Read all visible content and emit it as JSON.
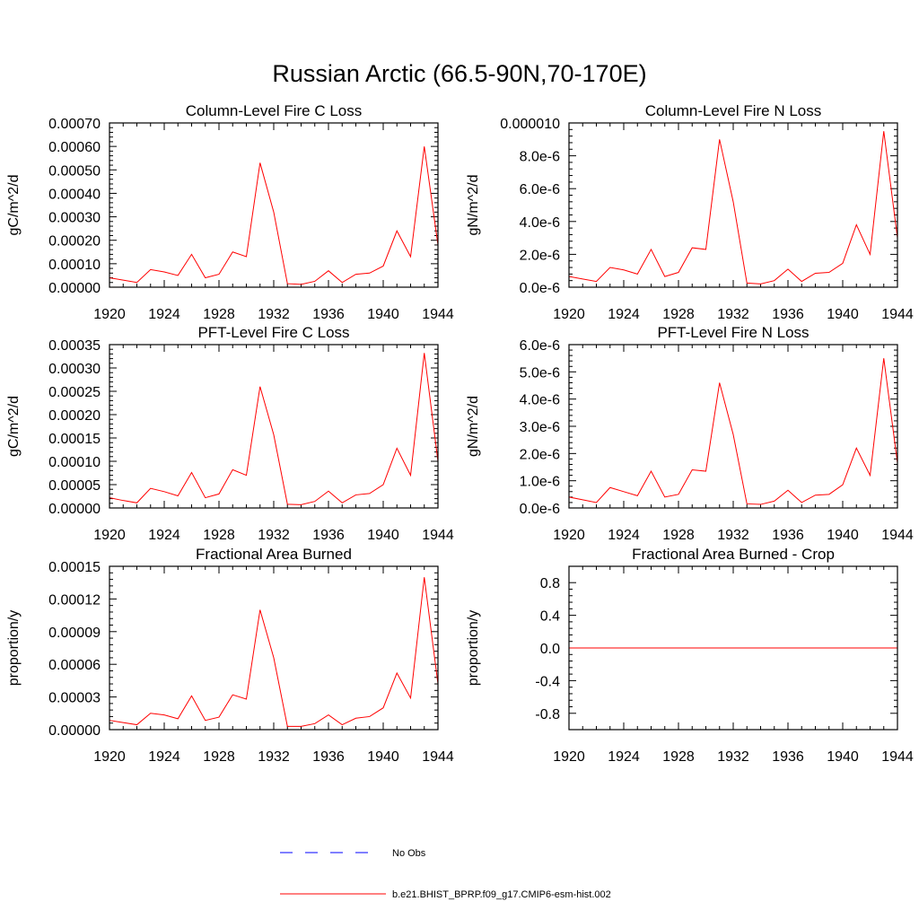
{
  "title": "Russian Arctic (66.5-90N,70-170E)",
  "colors": {
    "model_line": "#ff0000",
    "obs_line": "#0000ff",
    "axes": "#000000"
  },
  "legend": {
    "obs_label": "No Obs",
    "model_label": "b.e21.BHIST_BPRP.f09_g17.CMIP6-esm-hist.002"
  },
  "chart_data": [
    {
      "type": "line",
      "title": "Column-Level Fire C Loss",
      "ylabel": "gC/m^2/d",
      "xlim": [
        1920,
        1944
      ],
      "ylim": [
        0,
        0.0007
      ],
      "xticks": [
        1920,
        1924,
        1928,
        1932,
        1936,
        1940,
        1944
      ],
      "yticks": [
        0,
        0.0001,
        0.0002,
        0.0003,
        0.0004,
        0.0005,
        0.0006,
        0.0007
      ],
      "ytick_labels": [
        "0.00000",
        "0.00010",
        "0.00020",
        "0.00030",
        "0.00040",
        "0.00050",
        "0.00060",
        "0.00070"
      ],
      "x": [
        1920,
        1921,
        1922,
        1923,
        1924,
        1925,
        1926,
        1927,
        1928,
        1929,
        1930,
        1931,
        1932,
        1933,
        1934,
        1935,
        1936,
        1937,
        1938,
        1939,
        1940,
        1941,
        1942,
        1943,
        1944
      ],
      "series": [
        {
          "name": "b.e21.BHIST_BPRP.f09_g17.CMIP6-esm-hist.002",
          "values": [
            4e-05,
            3e-05,
            2e-05,
            7.5e-05,
            6.5e-05,
            5e-05,
            0.00014,
            4e-05,
            5.5e-05,
            0.00015,
            0.00013,
            0.00053,
            0.00032,
            1.5e-05,
            1.2e-05,
            2.5e-05,
            7e-05,
            2e-05,
            5.5e-05,
            6e-05,
            9e-05,
            0.00024,
            0.00013,
            0.0006,
            0.00018
          ]
        }
      ]
    },
    {
      "type": "line",
      "title": "Column-Level Fire N Loss",
      "ylabel": "gN/m^2/d",
      "xlim": [
        1920,
        1944
      ],
      "ylim": [
        0,
        1e-05
      ],
      "xticks": [
        1920,
        1924,
        1928,
        1932,
        1936,
        1940,
        1944
      ],
      "yticks": [
        0,
        2e-06,
        4e-06,
        6e-06,
        8e-06,
        1e-05
      ],
      "ytick_labels": [
        "0.0e-6",
        "2.0e-6",
        "4.0e-6",
        "6.0e-6",
        "8.0e-6",
        "0.000010"
      ],
      "x": [
        1920,
        1921,
        1922,
        1923,
        1924,
        1925,
        1926,
        1927,
        1928,
        1929,
        1930,
        1931,
        1932,
        1933,
        1934,
        1935,
        1936,
        1937,
        1938,
        1939,
        1940,
        1941,
        1942,
        1943,
        1944
      ],
      "series": [
        {
          "name": "b.e21.BHIST_BPRP.f09_g17.CMIP6-esm-hist.002",
          "values": [
            6.5e-07,
            5e-07,
            3.5e-07,
            1.2e-06,
            1.05e-06,
            8e-07,
            2.3e-06,
            6.5e-07,
            9e-07,
            2.4e-06,
            2.3e-06,
            9e-06,
            5.2e-06,
            2.5e-07,
            2e-07,
            4e-07,
            1.1e-06,
            3.5e-07,
            8.5e-07,
            9e-07,
            1.45e-06,
            3.8e-06,
            2e-06,
            9.5e-06,
            3e-06
          ]
        }
      ]
    },
    {
      "type": "line",
      "title": "PFT-Level Fire C Loss",
      "ylabel": "gC/m^2/d",
      "xlim": [
        1920,
        1944
      ],
      "ylim": [
        0,
        0.00035
      ],
      "xticks": [
        1920,
        1924,
        1928,
        1932,
        1936,
        1940,
        1944
      ],
      "yticks": [
        0,
        5e-05,
        0.0001,
        0.00015,
        0.0002,
        0.00025,
        0.0003,
        0.00035
      ],
      "ytick_labels": [
        "0.00000",
        "0.00005",
        "0.00010",
        "0.00015",
        "0.00020",
        "0.00025",
        "0.00030",
        "0.00035"
      ],
      "x": [
        1920,
        1921,
        1922,
        1923,
        1924,
        1925,
        1926,
        1927,
        1928,
        1929,
        1930,
        1931,
        1932,
        1933,
        1934,
        1935,
        1936,
        1937,
        1938,
        1939,
        1940,
        1941,
        1942,
        1943,
        1944
      ],
      "series": [
        {
          "name": "b.e21.BHIST_BPRP.f09_g17.CMIP6-esm-hist.002",
          "values": [
            2.2e-05,
            1.6e-05,
            1.1e-05,
            4.2e-05,
            3.5e-05,
            2.6e-05,
            7.6e-05,
            2.2e-05,
            3e-05,
            8.2e-05,
            7e-05,
            0.00026,
            0.000157,
            8e-06,
            7e-06,
            1.4e-05,
            3.6e-05,
            1.1e-05,
            2.8e-05,
            3.1e-05,
            5e-05,
            0.000128,
            7e-05,
            0.000332,
            0.0001
          ]
        }
      ]
    },
    {
      "type": "line",
      "title": "PFT-Level Fire N Loss",
      "ylabel": "gN/m^2/d",
      "xlim": [
        1920,
        1944
      ],
      "ylim": [
        0,
        6e-06
      ],
      "xticks": [
        1920,
        1924,
        1928,
        1932,
        1936,
        1940,
        1944
      ],
      "yticks": [
        0,
        1e-06,
        2e-06,
        3e-06,
        4e-06,
        5e-06,
        6e-06
      ],
      "ytick_labels": [
        "0.0e-6",
        "1.0e-6",
        "2.0e-6",
        "3.0e-6",
        "4.0e-6",
        "5.0e-6",
        "6.0e-6"
      ],
      "x": [
        1920,
        1921,
        1922,
        1923,
        1924,
        1925,
        1926,
        1927,
        1928,
        1929,
        1930,
        1931,
        1932,
        1933,
        1934,
        1935,
        1936,
        1937,
        1938,
        1939,
        1940,
        1941,
        1942,
        1943,
        1944
      ],
      "series": [
        {
          "name": "b.e21.BHIST_BPRP.f09_g17.CMIP6-esm-hist.002",
          "values": [
            4e-07,
            3e-07,
            2e-07,
            7.5e-07,
            6e-07,
            4.5e-07,
            1.35e-06,
            4e-07,
            5e-07,
            1.4e-06,
            1.35e-06,
            4.6e-06,
            2.7e-06,
            1.5e-07,
            1.3e-07,
            2.5e-07,
            6.5e-07,
            2e-07,
            4.7e-07,
            5e-07,
            8.5e-07,
            2.2e-06,
            1.2e-06,
            5.5e-06,
            1.65e-06
          ]
        }
      ]
    },
    {
      "type": "line",
      "title": "Fractional Area Burned",
      "ylabel": "proportion/y",
      "xlim": [
        1920,
        1944
      ],
      "ylim": [
        0,
        0.00015
      ],
      "xticks": [
        1920,
        1924,
        1928,
        1932,
        1936,
        1940,
        1944
      ],
      "yticks": [
        0,
        3e-05,
        6e-05,
        9e-05,
        0.00012,
        0.00015
      ],
      "ytick_labels": [
        "0.00000",
        "0.00003",
        "0.00006",
        "0.00009",
        "0.00012",
        "0.00015"
      ],
      "x": [
        1920,
        1921,
        1922,
        1923,
        1924,
        1925,
        1926,
        1927,
        1928,
        1929,
        1930,
        1931,
        1932,
        1933,
        1934,
        1935,
        1936,
        1937,
        1938,
        1939,
        1940,
        1941,
        1942,
        1943,
        1944
      ],
      "series": [
        {
          "name": "b.e21.BHIST_BPRP.f09_g17.CMIP6-esm-hist.002",
          "values": [
            8.5e-06,
            6.5e-06,
            4.5e-06,
            1.5e-05,
            1.35e-05,
            1e-05,
            3.1e-05,
            8.5e-06,
            1.15e-05,
            3.2e-05,
            2.8e-05,
            0.00011,
            6.6e-05,
            3e-06,
            3e-06,
            5.5e-06,
            1.35e-05,
            4.5e-06,
            1.05e-05,
            1.2e-05,
            2e-05,
            5.2e-05,
            2.9e-05,
            0.00014,
            4.2e-05
          ]
        }
      ]
    },
    {
      "type": "line",
      "title": "Fractional Area Burned - Crop",
      "ylabel": "proportion/y",
      "xlim": [
        1920,
        1944
      ],
      "ylim": [
        -1,
        1
      ],
      "xticks": [
        1920,
        1924,
        1928,
        1932,
        1936,
        1940,
        1944
      ],
      "yticks": [
        -0.8,
        -0.4,
        0,
        0.4,
        0.8
      ],
      "ytick_labels": [
        "-0.8",
        "-0.4",
        "0.0",
        "0.4",
        "0.8"
      ],
      "x": [
        1920,
        1921,
        1922,
        1923,
        1924,
        1925,
        1926,
        1927,
        1928,
        1929,
        1930,
        1931,
        1932,
        1933,
        1934,
        1935,
        1936,
        1937,
        1938,
        1939,
        1940,
        1941,
        1942,
        1943,
        1944
      ],
      "series": [
        {
          "name": "b.e21.BHIST_BPRP.f09_g17.CMIP6-esm-hist.002",
          "values": [
            0,
            0,
            0,
            0,
            0,
            0,
            0,
            0,
            0,
            0,
            0,
            0,
            0,
            0,
            0,
            0,
            0,
            0,
            0,
            0,
            0,
            0,
            0,
            0,
            0
          ]
        }
      ]
    }
  ]
}
